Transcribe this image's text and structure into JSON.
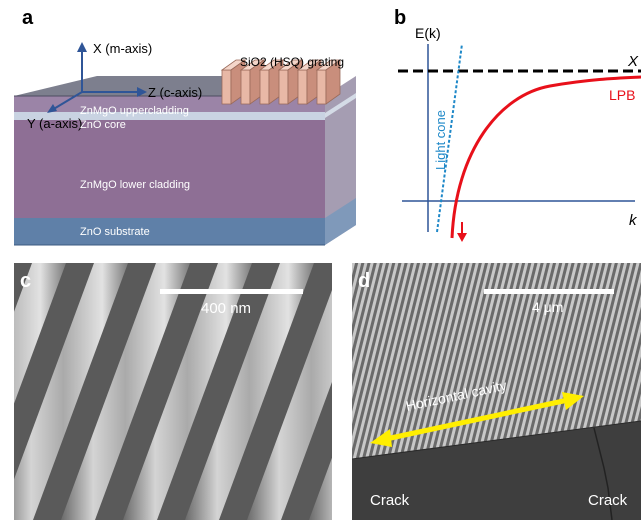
{
  "panels": {
    "a": {
      "label": "a",
      "axes": {
        "x_axis": "X (m-axis)",
        "z_axis": "Z (c-axis)",
        "y_axis": "Y (a-axis)"
      },
      "grating_label": "SiO2 (HSQ) grating",
      "layers": [
        "ZnMgO uppercladding",
        "ZnO core",
        "ZnMgO lower cladding",
        "ZnO substrate"
      ],
      "colors": {
        "top": "#7d7f8e",
        "upper": "#9b84a7",
        "core": "#c9d3e2",
        "lower": "#8e6f95",
        "substrate": "#5f80a8",
        "grating": "#f0c8b8"
      }
    },
    "b": {
      "label": "b",
      "y_axis_label": "E(k)",
      "x_axis_label": "k",
      "exciton_label": "X",
      "lpb_label": "LPB",
      "light_cone_label": "Light cone",
      "colors": {
        "lpb": "#e8101a",
        "light_cone": "#1e88c8",
        "exciton": "#000000",
        "axes": "#2f5597"
      }
    },
    "c": {
      "label": "c",
      "scale_bar_label": "400 nm"
    },
    "d": {
      "label": "d",
      "scale_bar_label": "4 μm",
      "arrow_label": "Horizontal cavity",
      "crack_left": "Crack",
      "crack_right": "Crack",
      "colors": {
        "arrow": "#ffee00"
      }
    }
  }
}
